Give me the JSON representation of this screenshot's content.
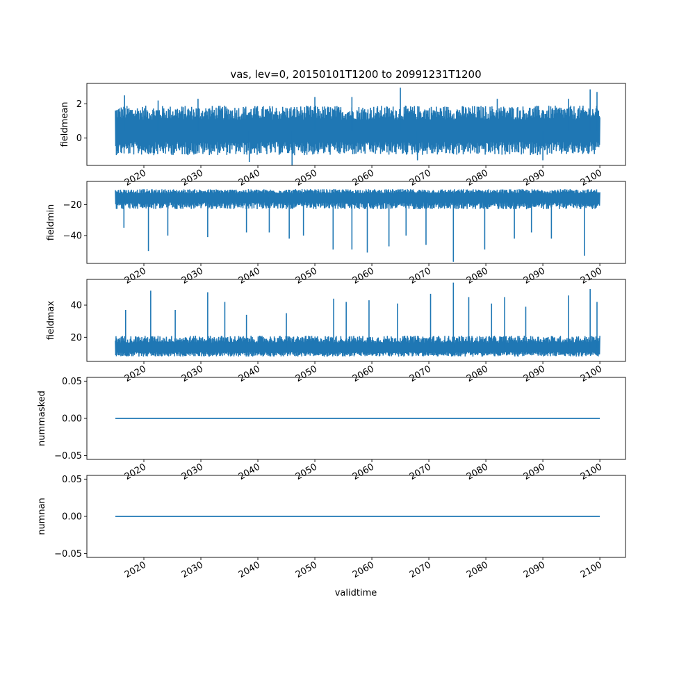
{
  "figure": {
    "title": "vas, lev=0, 20150101T1200 to 20991231T1200",
    "xlabel": "validtime",
    "line_color": "#1f77b4"
  },
  "chart_data": [
    {
      "type": "line",
      "ylabel": "fieldmean",
      "x_range": [
        2015.0,
        2100.0
      ],
      "xlim": [
        2010.0,
        2104.5
      ],
      "ylim": [
        -1.6,
        3.2
      ],
      "yticks": [
        0,
        2
      ],
      "ytick_labels": [
        "0",
        "2"
      ],
      "xticks": [
        2020,
        2030,
        2040,
        2050,
        2060,
        2070,
        2080,
        2090,
        2100
      ],
      "xtick_labels": [
        "2020",
        "2030",
        "2040",
        "2050",
        "2060",
        "2070",
        "2080",
        "2090",
        "2100"
      ],
      "band": {
        "low": -1.0,
        "high": 1.9,
        "center": 0.4
      },
      "spikes": [
        {
          "x": 2016.6,
          "y": 2.5
        },
        {
          "x": 2022.5,
          "y": 2.2
        },
        {
          "x": 2029.5,
          "y": 2.3
        },
        {
          "x": 2038.5,
          "y": -1.4
        },
        {
          "x": 2046.0,
          "y": -1.6
        },
        {
          "x": 2050.0,
          "y": 2.4
        },
        {
          "x": 2056.5,
          "y": 2.4
        },
        {
          "x": 2065.0,
          "y": 2.95
        },
        {
          "x": 2082.0,
          "y": 2.3
        },
        {
          "x": 2094.5,
          "y": 2.3
        },
        {
          "x": 2098.3,
          "y": 2.85
        },
        {
          "x": 2099.5,
          "y": 2.7
        },
        {
          "x": 2068.0,
          "y": -1.3
        },
        {
          "x": 2090.0,
          "y": -1.3
        }
      ]
    },
    {
      "type": "line",
      "ylabel": "fieldmin",
      "x_range": [
        2015.0,
        2100.0
      ],
      "xlim": [
        2010.0,
        2104.5
      ],
      "ylim": [
        -58.0,
        -5.0
      ],
      "yticks": [
        -40,
        -20
      ],
      "ytick_labels": [
        "−40",
        "−20"
      ],
      "xticks": [
        2020,
        2030,
        2040,
        2050,
        2060,
        2070,
        2080,
        2090,
        2100
      ],
      "xtick_labels": [
        "2020",
        "2030",
        "2040",
        "2050",
        "2060",
        "2070",
        "2080",
        "2090",
        "2100"
      ],
      "band": {
        "low": -23.0,
        "high": -10.0,
        "center": -15.0
      },
      "spikes": [
        {
          "x": 2020.8,
          "y": -50.0
        },
        {
          "x": 2016.5,
          "y": -35.0
        },
        {
          "x": 2024.2,
          "y": -40.0
        },
        {
          "x": 2031.2,
          "y": -41.0
        },
        {
          "x": 2038.0,
          "y": -38.0
        },
        {
          "x": 2045.5,
          "y": -42.0
        },
        {
          "x": 2048.0,
          "y": -40.0
        },
        {
          "x": 2053.2,
          "y": -49.0
        },
        {
          "x": 2056.5,
          "y": -49.0
        },
        {
          "x": 2059.2,
          "y": -51.0
        },
        {
          "x": 2063.0,
          "y": -47.0
        },
        {
          "x": 2069.5,
          "y": -46.0
        },
        {
          "x": 2074.3,
          "y": -57.0
        },
        {
          "x": 2079.8,
          "y": -49.0
        },
        {
          "x": 2085.0,
          "y": -42.0
        },
        {
          "x": 2091.5,
          "y": -42.0
        },
        {
          "x": 2097.3,
          "y": -53.0
        },
        {
          "x": 2066.0,
          "y": -40.0
        },
        {
          "x": 2042.0,
          "y": -38.0
        },
        {
          "x": 2088.0,
          "y": -38.0
        }
      ]
    },
    {
      "type": "line",
      "ylabel": "fieldmax",
      "x_range": [
        2015.0,
        2100.0
      ],
      "xlim": [
        2010.0,
        2104.5
      ],
      "ylim": [
        5.0,
        56.0
      ],
      "yticks": [
        20,
        40
      ],
      "ytick_labels": [
        "20",
        "40"
      ],
      "xticks": [
        2020,
        2030,
        2040,
        2050,
        2060,
        2070,
        2080,
        2090,
        2100
      ],
      "xtick_labels": [
        "2020",
        "2030",
        "2040",
        "2050",
        "2060",
        "2070",
        "2080",
        "2090",
        "2100"
      ],
      "band": {
        "low": 8.0,
        "high": 21.0,
        "center": 13.0
      },
      "spikes": [
        {
          "x": 2021.2,
          "y": 49.0
        },
        {
          "x": 2016.8,
          "y": 37.0
        },
        {
          "x": 2025.5,
          "y": 37.0
        },
        {
          "x": 2031.2,
          "y": 48.0
        },
        {
          "x": 2034.2,
          "y": 42.0
        },
        {
          "x": 2053.3,
          "y": 44.0
        },
        {
          "x": 2055.5,
          "y": 42.0
        },
        {
          "x": 2059.5,
          "y": 43.0
        },
        {
          "x": 2064.5,
          "y": 41.0
        },
        {
          "x": 2070.3,
          "y": 47.0
        },
        {
          "x": 2074.3,
          "y": 54.0
        },
        {
          "x": 2077.0,
          "y": 45.0
        },
        {
          "x": 2083.3,
          "y": 45.0
        },
        {
          "x": 2094.5,
          "y": 46.0
        },
        {
          "x": 2098.3,
          "y": 50.0
        },
        {
          "x": 2099.5,
          "y": 42.0
        },
        {
          "x": 2081.0,
          "y": 41.0
        },
        {
          "x": 2087.0,
          "y": 39.0
        },
        {
          "x": 2045.0,
          "y": 35.0
        },
        {
          "x": 2038.0,
          "y": 34.0
        }
      ]
    },
    {
      "type": "line",
      "ylabel": "nummasked",
      "x": [
        2015.0,
        2100.0
      ],
      "y": [
        0.0,
        0.0
      ],
      "xlim": [
        2010.0,
        2104.5
      ],
      "ylim": [
        -0.055,
        0.055
      ],
      "yticks": [
        -0.05,
        0.0,
        0.05
      ],
      "ytick_labels": [
        "−0.05",
        "0.00",
        "0.05"
      ],
      "xticks": [
        2020,
        2030,
        2040,
        2050,
        2060,
        2070,
        2080,
        2090,
        2100
      ],
      "xtick_labels": [
        "2020",
        "2030",
        "2040",
        "2050",
        "2060",
        "2070",
        "2080",
        "2090",
        "2100"
      ]
    },
    {
      "type": "line",
      "ylabel": "numnan",
      "x": [
        2015.0,
        2100.0
      ],
      "y": [
        0.0,
        0.0
      ],
      "xlim": [
        2010.0,
        2104.5
      ],
      "ylim": [
        -0.055,
        0.055
      ],
      "yticks": [
        -0.05,
        0.0,
        0.05
      ],
      "ytick_labels": [
        "−0.05",
        "0.00",
        "0.05"
      ],
      "xticks": [
        2020,
        2030,
        2040,
        2050,
        2060,
        2070,
        2080,
        2090,
        2100
      ],
      "xtick_labels": [
        "2020",
        "2030",
        "2040",
        "2050",
        "2060",
        "2070",
        "2080",
        "2090",
        "2100"
      ]
    }
  ]
}
